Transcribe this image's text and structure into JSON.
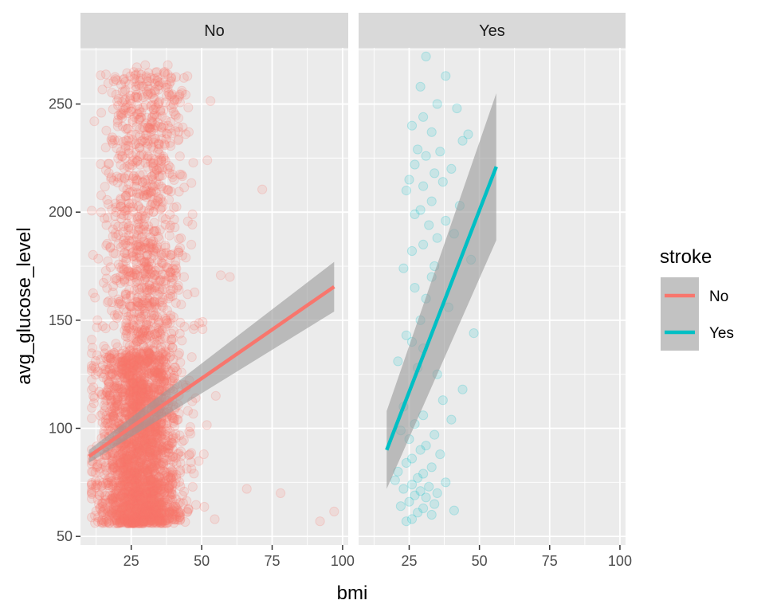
{
  "chart_data": {
    "type": "scatter",
    "facet_by": "stroke",
    "xlabel": "bmi",
    "ylabel": "avg_glucose_level",
    "xlim": [
      7,
      102
    ],
    "ylim": [
      46,
      276
    ],
    "x_ticks": [
      25,
      50,
      75,
      100
    ],
    "y_ticks": [
      50,
      100,
      150,
      200,
      250
    ],
    "x_tick_labels": [
      "25",
      "50",
      "75",
      "100"
    ],
    "y_tick_labels": [
      "50",
      "100",
      "150",
      "200",
      "250"
    ],
    "panels": [
      {
        "strip": "No",
        "color": "#F8766D",
        "point_alpha": 0.15,
        "points_notable": [
          [
            71.5,
            210.5
          ],
          [
            92,
            57
          ],
          [
            97,
            61.5
          ],
          [
            78,
            70
          ],
          [
            60,
            170
          ],
          [
            66,
            72
          ],
          [
            55,
            115
          ],
          [
            52,
            224
          ],
          [
            45,
            162
          ],
          [
            43,
            255
          ],
          [
            38,
            268
          ],
          [
            30,
            268
          ],
          [
            27,
            267
          ]
        ],
        "cloud": [
          {
            "x_center": 28,
            "x_spread": 7,
            "y_min": 56,
            "y_max": 135,
            "count": 2500
          },
          {
            "x_center": 30,
            "x_spread": 7,
            "y_min": 135,
            "y_max": 185,
            "count": 450
          },
          {
            "x_center": 30,
            "x_spread": 7,
            "y_min": 185,
            "y_max": 265,
            "count": 550
          }
        ],
        "trend": {
          "x": [
            10,
            97
          ],
          "y": [
            87,
            165.5
          ]
        },
        "ci_band": {
          "x": [
            10,
            97
          ],
          "lower": [
            84,
            154
          ],
          "upper": [
            90,
            177
          ]
        }
      },
      {
        "strip": "Yes",
        "color": "#00BFC4",
        "point_alpha": 0.15,
        "points": [
          [
            31,
            272
          ],
          [
            38,
            263
          ],
          [
            29,
            258
          ],
          [
            35,
            250
          ],
          [
            42,
            248
          ],
          [
            30,
            244
          ],
          [
            26,
            240
          ],
          [
            33,
            237
          ],
          [
            46,
            236
          ],
          [
            44,
            233
          ],
          [
            28,
            229
          ],
          [
            36,
            228
          ],
          [
            31,
            226
          ],
          [
            27,
            222
          ],
          [
            40,
            220
          ],
          [
            34,
            218
          ],
          [
            25,
            215
          ],
          [
            37,
            214
          ],
          [
            30,
            212
          ],
          [
            24,
            210
          ],
          [
            33,
            205
          ],
          [
            43,
            203
          ],
          [
            29,
            201
          ],
          [
            27,
            199
          ],
          [
            38,
            196
          ],
          [
            32,
            194
          ],
          [
            41,
            190
          ],
          [
            35,
            188
          ],
          [
            30,
            185
          ],
          [
            26,
            182
          ],
          [
            47,
            178
          ],
          [
            34,
            175
          ],
          [
            23,
            174
          ],
          [
            33,
            170
          ],
          [
            27,
            165
          ],
          [
            31,
            160
          ],
          [
            39,
            156
          ],
          [
            29,
            150
          ],
          [
            48,
            144
          ],
          [
            24,
            143
          ],
          [
            26,
            140
          ],
          [
            30,
            137
          ],
          [
            21,
            131
          ],
          [
            28,
            128
          ],
          [
            35,
            125
          ],
          [
            44,
            118
          ],
          [
            37,
            113
          ],
          [
            23,
            110
          ],
          [
            30,
            106
          ],
          [
            40,
            104
          ],
          [
            27,
            102
          ],
          [
            22,
            99
          ],
          [
            34,
            97
          ],
          [
            25,
            95
          ],
          [
            31,
            92
          ],
          [
            29,
            90
          ],
          [
            36,
            88
          ],
          [
            26,
            86
          ],
          [
            24,
            84
          ],
          [
            33,
            82
          ],
          [
            21,
            80
          ],
          [
            30,
            79
          ],
          [
            28,
            77
          ],
          [
            20,
            76
          ],
          [
            38,
            75
          ],
          [
            26,
            74
          ],
          [
            32,
            73
          ],
          [
            23,
            72
          ],
          [
            29,
            71
          ],
          [
            35,
            70
          ],
          [
            27,
            69
          ],
          [
            31,
            68
          ],
          [
            25,
            66
          ],
          [
            34,
            65
          ],
          [
            22,
            64
          ],
          [
            30,
            63
          ],
          [
            41,
            62
          ],
          [
            28,
            61
          ],
          [
            33,
            60
          ],
          [
            26,
            58
          ],
          [
            24,
            57
          ]
        ],
        "trend": {
          "x": [
            17,
            56
          ],
          "y": [
            90,
            221
          ]
        },
        "ci_band": {
          "x": [
            17,
            56
          ],
          "lower": [
            72,
            187
          ],
          "upper": [
            108,
            255
          ]
        }
      }
    ],
    "legend": {
      "title": "stroke",
      "placement": "right",
      "entries": [
        {
          "label": "No",
          "color": "#F8766D"
        },
        {
          "label": "Yes",
          "color": "#00BFC4"
        }
      ]
    },
    "grid": true,
    "panel_background": "#EBEBEB",
    "strip_background": "#D9D9D9",
    "ci_color": "#999999"
  }
}
